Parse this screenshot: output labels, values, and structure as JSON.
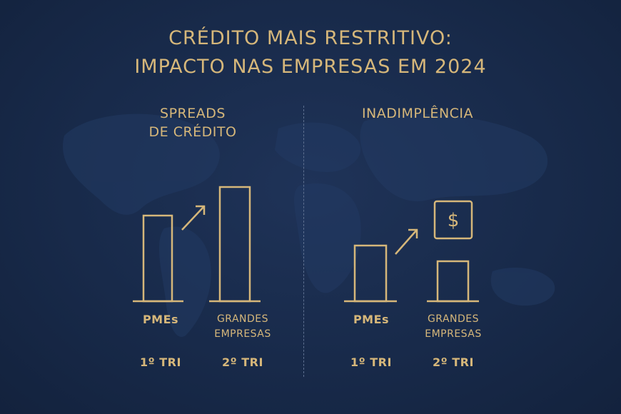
{
  "title_line1": "CRÉDITO MAIS RESTRITIVO:",
  "title_line2": "IMPACTO NAS EMPRESAS EM 2024",
  "colors": {
    "background": "#182a4a",
    "accent": "#d6b77a",
    "divider": "#5d6f8f"
  },
  "icons": {
    "arrow": "arrow-up-right-icon",
    "money": "dollar-box-icon",
    "map": "world-map-icon"
  },
  "chart_data": [
    {
      "type": "bar",
      "title_line1": "SPREADS",
      "title_line2": "DE CRÉDITO",
      "categories": [
        "PMEs",
        "GRANDES EMPRESAS"
      ],
      "category_lines": [
        [
          "PMEs"
        ],
        [
          "GRANDES",
          "EMPRESAS"
        ]
      ],
      "periods": [
        "1º TRI",
        "2º TRI"
      ],
      "values": [
        120,
        160
      ],
      "trend": "up"
    },
    {
      "type": "bar",
      "title_line1": "INADIMPLÊNCIA",
      "title_line2": "",
      "categories": [
        "PMEs",
        "GRANDES EMPRESAS"
      ],
      "category_lines": [
        [
          "PMEs"
        ],
        [
          "GRANDES",
          "EMPRESAS"
        ]
      ],
      "periods": [
        "1º TRI",
        "2º TRI"
      ],
      "values": [
        78,
        56
      ],
      "trend": "up",
      "icon_symbol": "$"
    }
  ]
}
